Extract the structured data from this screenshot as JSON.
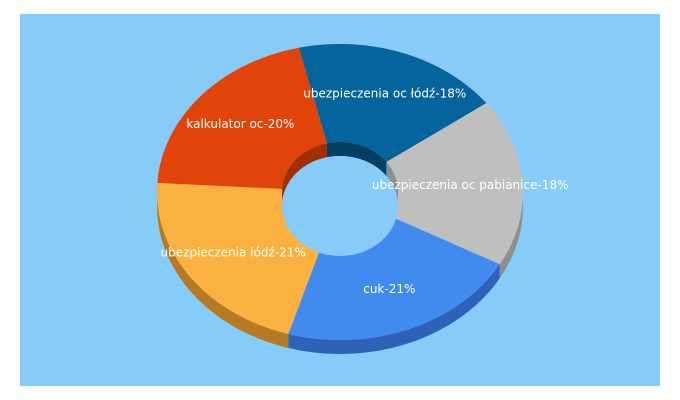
{
  "chart_data": {
    "type": "pie",
    "variant": "3d-donut",
    "background_color": "#87cbf9",
    "slices": [
      {
        "label": "ubezpieczenia oc łódź-18%",
        "value": 18,
        "color": "#04649b",
        "side_color": "#033f63"
      },
      {
        "label": "ubezpieczenia oc pabianice-18%",
        "value": 18,
        "color": "#bfbfbf",
        "side_color": "#8f8f8f"
      },
      {
        "label": "cuk-21%",
        "value": 21,
        "color": "#418bef",
        "side_color": "#2e62b8"
      },
      {
        "label": "ubezpieczenia łódź-21%",
        "value": 21,
        "color": "#fbb140",
        "side_color": "#b57a22"
      },
      {
        "label": "kalkulator oc-20%",
        "value": 20,
        "color": "#e0440a",
        "side_color": "#a22f04"
      }
    ]
  }
}
